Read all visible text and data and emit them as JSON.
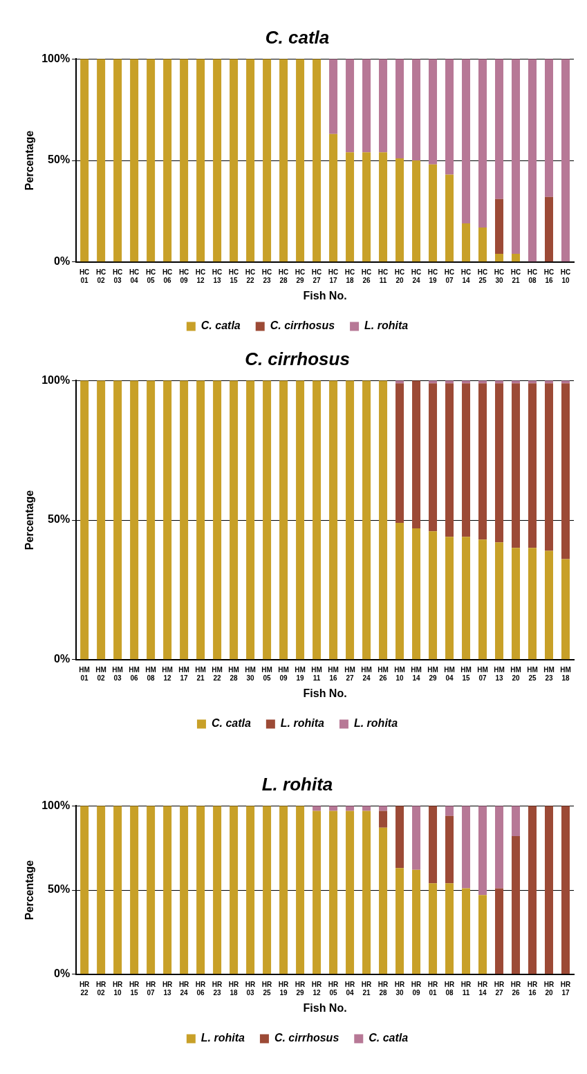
{
  "chart_data": [
    {
      "type": "bar",
      "title": "C. catla",
      "xlabel": "Fish No.",
      "ylabel": "Percentage",
      "stacked": true,
      "grid": "y",
      "legend": "bottom",
      "categories": [
        "HC 01",
        "HC 02",
        "HC 03",
        "HC 04",
        "HC 05",
        "HC 06",
        "HC 09",
        "HC 12",
        "HC 13",
        "HC 15",
        "HC 22",
        "HC 23",
        "HC 28",
        "HC 29",
        "HC 27",
        "HC 17",
        "HC 18",
        "HC 26",
        "HC 11",
        "HC 20",
        "HC 24",
        "HC 19",
        "HC 07",
        "HC 14",
        "HC 25",
        "HC 30",
        "HC 21",
        "HC 08",
        "HC 16",
        "HC 10"
      ],
      "ylim": [
        0,
        100
      ],
      "yticks": [
        {
          "value": 0,
          "label": "0%"
        },
        {
          "value": 50,
          "label": "50%"
        },
        {
          "value": 100,
          "label": "100%"
        }
      ],
      "series": [
        {
          "name": "C. catla",
          "color": "#c8a028",
          "values": [
            100,
            100,
            100,
            100,
            100,
            100,
            100,
            100,
            100,
            100,
            100,
            100,
            100,
            100,
            100,
            63,
            54,
            54,
            54,
            51,
            50,
            48,
            43,
            19,
            17,
            4,
            4,
            0,
            0,
            0
          ]
        },
        {
          "name": "C. cirrhosus",
          "color": "#9c4a36",
          "values": [
            0,
            0,
            0,
            0,
            0,
            0,
            0,
            0,
            0,
            0,
            0,
            0,
            0,
            0,
            0,
            0,
            0,
            0,
            0,
            0,
            0,
            0,
            0,
            0,
            0,
            27,
            0,
            0,
            32,
            0
          ]
        },
        {
          "name": "L. rohita",
          "color": "#b77896",
          "values": [
            0,
            0,
            0,
            0,
            0,
            0,
            0,
            0,
            0,
            0,
            0,
            0,
            0,
            0,
            0,
            37,
            46,
            46,
            46,
            49,
            50,
            52,
            57,
            81,
            83,
            69,
            96,
            100,
            68,
            100
          ]
        }
      ]
    },
    {
      "type": "bar",
      "title": "C. cirrhosus",
      "xlabel": "Fish No.",
      "ylabel": "Percentage",
      "stacked": true,
      "grid": "y",
      "legend": "bottom",
      "categories": [
        "HM 01",
        "HM 02",
        "HM 03",
        "HM 06",
        "HM 08",
        "HM 12",
        "HM 17",
        "HM 21",
        "HM 22",
        "HM 28",
        "HM 30",
        "HM 05",
        "HM 09",
        "HM 19",
        "HM 11",
        "HM 16",
        "HM 27",
        "HM 24",
        "HM 26",
        "HM 10",
        "HM 14",
        "HM 29",
        "HM 04",
        "HM 15",
        "HM 07",
        "HM 13",
        "HM 20",
        "HM 25",
        "HM 23",
        "HM 18"
      ],
      "ylim": [
        0,
        100
      ],
      "yticks": [
        {
          "value": 0,
          "label": "0%"
        },
        {
          "value": 50,
          "label": "50%"
        },
        {
          "value": 100,
          "label": "100%"
        }
      ],
      "series": [
        {
          "name": "C. catla",
          "color": "#c8a028",
          "values": [
            100,
            100,
            100,
            100,
            100,
            100,
            100,
            100,
            100,
            100,
            100,
            100,
            100,
            100,
            100,
            100,
            100,
            100,
            100,
            49,
            47,
            46,
            44,
            44,
            43,
            42,
            40,
            40,
            39,
            36
          ]
        },
        {
          "name": "L. rohita",
          "color": "#9c4a36",
          "values": [
            0,
            0,
            0,
            0,
            0,
            0,
            0,
            0,
            0,
            0,
            0,
            0,
            0,
            0,
            0,
            0,
            0,
            0,
            0,
            50,
            53,
            53,
            55,
            55,
            56,
            57,
            59,
            59,
            60,
            63
          ]
        },
        {
          "name": "L. rohita",
          "color": "#b77896",
          "values": [
            0,
            0,
            0,
            0,
            0,
            0,
            0,
            0,
            0,
            0,
            0,
            0,
            0,
            0,
            0,
            0,
            0,
            0,
            0,
            1,
            0,
            1,
            1,
            1,
            1,
            1,
            1,
            1,
            1,
            1
          ]
        }
      ]
    },
    {
      "type": "bar",
      "title": "L. rohita",
      "xlabel": "Fish No.",
      "ylabel": "Percentage",
      "stacked": true,
      "grid": "y",
      "legend": "bottom",
      "categories": [
        "HR 22",
        "HR 02",
        "HR 10",
        "HR 15",
        "HR 07",
        "HR 13",
        "HR 24",
        "HR 06",
        "HR 23",
        "HR 18",
        "HR 03",
        "HR 25",
        "HR 19",
        "HR 29",
        "HR 12",
        "HR 05",
        "HR 04",
        "HR 21",
        "HR 28",
        "HR 30",
        "HR 09",
        "HR 01",
        "HR 08",
        "HR 11",
        "HR 14",
        "HR 27",
        "HR 26",
        "HR 16",
        "HR 20",
        "HR 17"
      ],
      "ylim": [
        0,
        100
      ],
      "yticks": [
        {
          "value": 0,
          "label": "0%"
        },
        {
          "value": 50,
          "label": "50%"
        },
        {
          "value": 100,
          "label": "100%"
        }
      ],
      "series": [
        {
          "name": "L. rohita",
          "color": "#c8a028",
          "values": [
            100,
            100,
            100,
            100,
            100,
            100,
            100,
            100,
            100,
            100,
            100,
            100,
            100,
            100,
            97,
            97,
            97,
            97,
            87,
            63,
            62,
            54,
            54,
            51,
            47,
            0,
            0,
            0,
            0,
            0
          ]
        },
        {
          "name": "C. cirrhosus",
          "color": "#9c4a36",
          "values": [
            0,
            0,
            0,
            0,
            0,
            0,
            0,
            0,
            0,
            0,
            0,
            0,
            0,
            0,
            0,
            0,
            0,
            0,
            10,
            37,
            0,
            46,
            40,
            0,
            0,
            51,
            82,
            100,
            100,
            100
          ]
        },
        {
          "name": "C. catla",
          "color": "#b77896",
          "values": [
            0,
            0,
            0,
            0,
            0,
            0,
            0,
            0,
            0,
            0,
            0,
            0,
            0,
            0,
            3,
            3,
            3,
            3,
            3,
            0,
            38,
            0,
            6,
            49,
            53,
            49,
            18,
            0,
            0,
            0
          ]
        }
      ]
    }
  ]
}
